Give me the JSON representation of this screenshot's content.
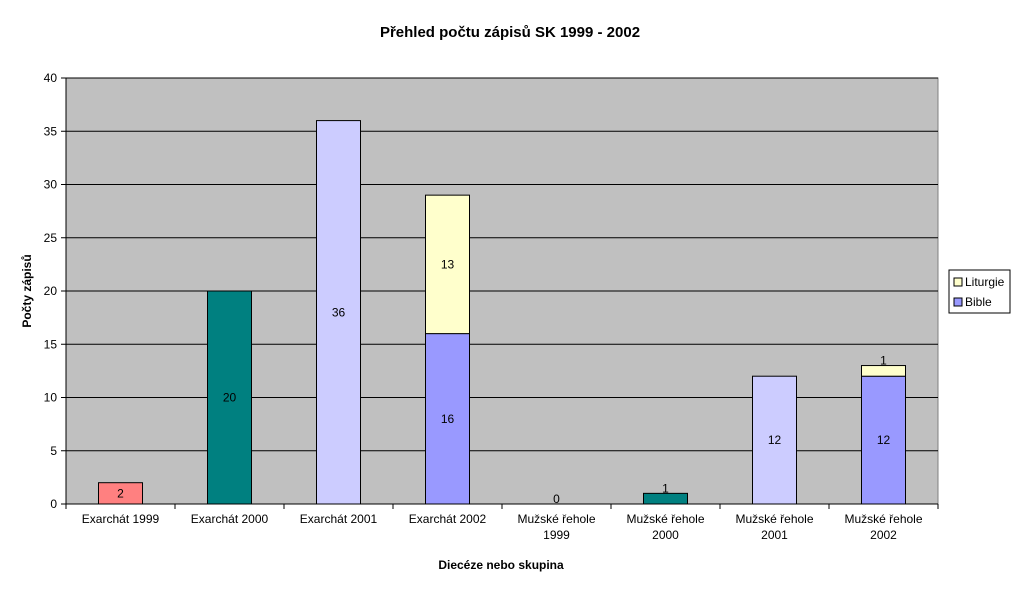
{
  "chart_data": {
    "type": "bar",
    "title": "Přehled počtu zápisů SK 1999 - 2002",
    "xlabel": "Diecéze nebo skupina",
    "ylabel": "Počty zápisů",
    "ylim": [
      0,
      40
    ],
    "yticks": [
      0,
      5,
      10,
      15,
      20,
      25,
      30,
      35,
      40
    ],
    "grid": true,
    "legend_position": "right",
    "stacked": true,
    "legend": [
      {
        "name": "Liturgie",
        "color": "#ffffcc"
      },
      {
        "name": "Bible",
        "color": "#9999ff"
      }
    ],
    "categories": [
      [
        "Exarchát 1999"
      ],
      [
        "Exarchát 2000"
      ],
      [
        "Exarchát 2001"
      ],
      [
        "Exarchát 2002"
      ],
      [
        "Mužské řehole",
        "1999"
      ],
      [
        "Mužské řehole",
        "2000"
      ],
      [
        "Mužské řehole",
        "2001"
      ],
      [
        "Mužské řehole",
        "2002"
      ]
    ],
    "bars": [
      {
        "segments": [
          {
            "value": 2,
            "label": "2",
            "color": "#ff8080"
          }
        ]
      },
      {
        "segments": [
          {
            "value": 20,
            "label": "20",
            "color": "#008080"
          }
        ]
      },
      {
        "segments": [
          {
            "value": 36,
            "label": "36",
            "color": "#ccccff"
          }
        ]
      },
      {
        "segments": [
          {
            "value": 16,
            "label": "16",
            "color": "#9999ff"
          },
          {
            "value": 13,
            "label": "13",
            "color": "#ffffcc"
          }
        ]
      },
      {
        "segments": [
          {
            "value": 0,
            "label": "0",
            "color": "#ccccff"
          }
        ]
      },
      {
        "segments": [
          {
            "value": 1,
            "label": "1",
            "color": "#008080"
          }
        ]
      },
      {
        "segments": [
          {
            "value": 12,
            "label": "12",
            "color": "#ccccff"
          }
        ]
      },
      {
        "segments": [
          {
            "value": 12,
            "label": "12",
            "color": "#9999ff"
          },
          {
            "value": 1,
            "label": "1",
            "color": "#ffffcc"
          }
        ]
      }
    ],
    "colors": {
      "plot_background": "#c0c0c0",
      "gridline": "#000000",
      "bar_outline": "#000000"
    }
  }
}
